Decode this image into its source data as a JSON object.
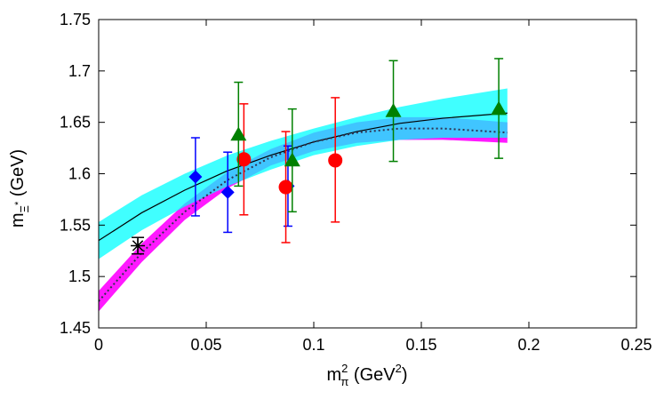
{
  "chart_data": {
    "type": "scatter",
    "title": "",
    "xlabel": {
      "base": "m",
      "sub": "π",
      "sup": "2",
      "unit_prefix": " (GeV",
      "unit_sup": "2",
      "unit_suffix": ")"
    },
    "ylabel": {
      "base": "m",
      "sub": "Ξ",
      "sub_sup": "*",
      "unit": " (GeV)"
    },
    "xlim": [
      0,
      0.25
    ],
    "ylim": [
      1.45,
      1.75
    ],
    "x_ticks": [
      0,
      0.05,
      0.1,
      0.15,
      0.2,
      0.25
    ],
    "x_tick_labels": [
      "0",
      "0.05",
      "0.1",
      "0.15",
      "0.2",
      "0.25"
    ],
    "y_ticks": [
      1.45,
      1.5,
      1.55,
      1.6,
      1.65,
      1.7,
      1.75
    ],
    "y_tick_labels": [
      "1.45",
      "1.5",
      "1.55",
      "1.6",
      "1.65",
      "1.7",
      "1.75"
    ],
    "grid": false,
    "series": [
      {
        "marker": "diamond",
        "color": "#0000ff",
        "points": [
          {
            "x": 0.045,
            "y": 1.597,
            "lo": 1.559,
            "hi": 1.635
          },
          {
            "x": 0.06,
            "y": 1.582,
            "lo": 1.543,
            "hi": 1.621
          },
          {
            "x": 0.088,
            "y": 1.588,
            "lo": 1.549,
            "hi": 1.627
          }
        ]
      },
      {
        "marker": "circle",
        "color": "#ff0000",
        "points": [
          {
            "x": 0.0675,
            "y": 1.614,
            "lo": 1.56,
            "hi": 1.668
          },
          {
            "x": 0.087,
            "y": 1.587,
            "lo": 1.533,
            "hi": 1.641
          },
          {
            "x": 0.11,
            "y": 1.613,
            "lo": 1.553,
            "hi": 1.674
          }
        ]
      },
      {
        "marker": "triangle",
        "color": "#008000",
        "points": [
          {
            "x": 0.065,
            "y": 1.638,
            "lo": 1.588,
            "hi": 1.689
          },
          {
            "x": 0.09,
            "y": 1.613,
            "lo": 1.563,
            "hi": 1.663
          },
          {
            "x": 0.137,
            "y": 1.661,
            "lo": 1.612,
            "hi": 1.71
          },
          {
            "x": 0.186,
            "y": 1.663,
            "lo": 1.615,
            "hi": 1.712
          }
        ]
      },
      {
        "marker": "asterisk",
        "color": "#000000",
        "points": [
          {
            "x": 0.0182,
            "y": 1.53,
            "lo": 1.522,
            "hi": 1.538
          }
        ]
      }
    ],
    "fit_bands": [
      {
        "style": "solid",
        "line_color": "#000000",
        "band_color": "#00ffff",
        "x": [
          0,
          0.02,
          0.04,
          0.06,
          0.08,
          0.1,
          0.12,
          0.14,
          0.16,
          0.19
        ],
        "y": [
          1.535,
          1.562,
          1.584,
          1.603,
          1.618,
          1.631,
          1.641,
          1.649,
          1.654,
          1.659
        ],
        "half_width": [
          0.018,
          0.017,
          0.016,
          0.015,
          0.014,
          0.013,
          0.014,
          0.016,
          0.019,
          0.024
        ]
      },
      {
        "style": "dotted",
        "line_color": "#303050",
        "band_color": "#ff00ff",
        "x": [
          0,
          0.02,
          0.04,
          0.06,
          0.08,
          0.1,
          0.12,
          0.14,
          0.16,
          0.19
        ],
        "y": [
          1.476,
          1.523,
          1.563,
          1.594,
          1.616,
          1.631,
          1.64,
          1.644,
          1.644,
          1.64
        ],
        "half_width": [
          0.01,
          0.009,
          0.008,
          0.008,
          0.008,
          0.009,
          0.01,
          0.011,
          0.011,
          0.01
        ]
      }
    ]
  }
}
